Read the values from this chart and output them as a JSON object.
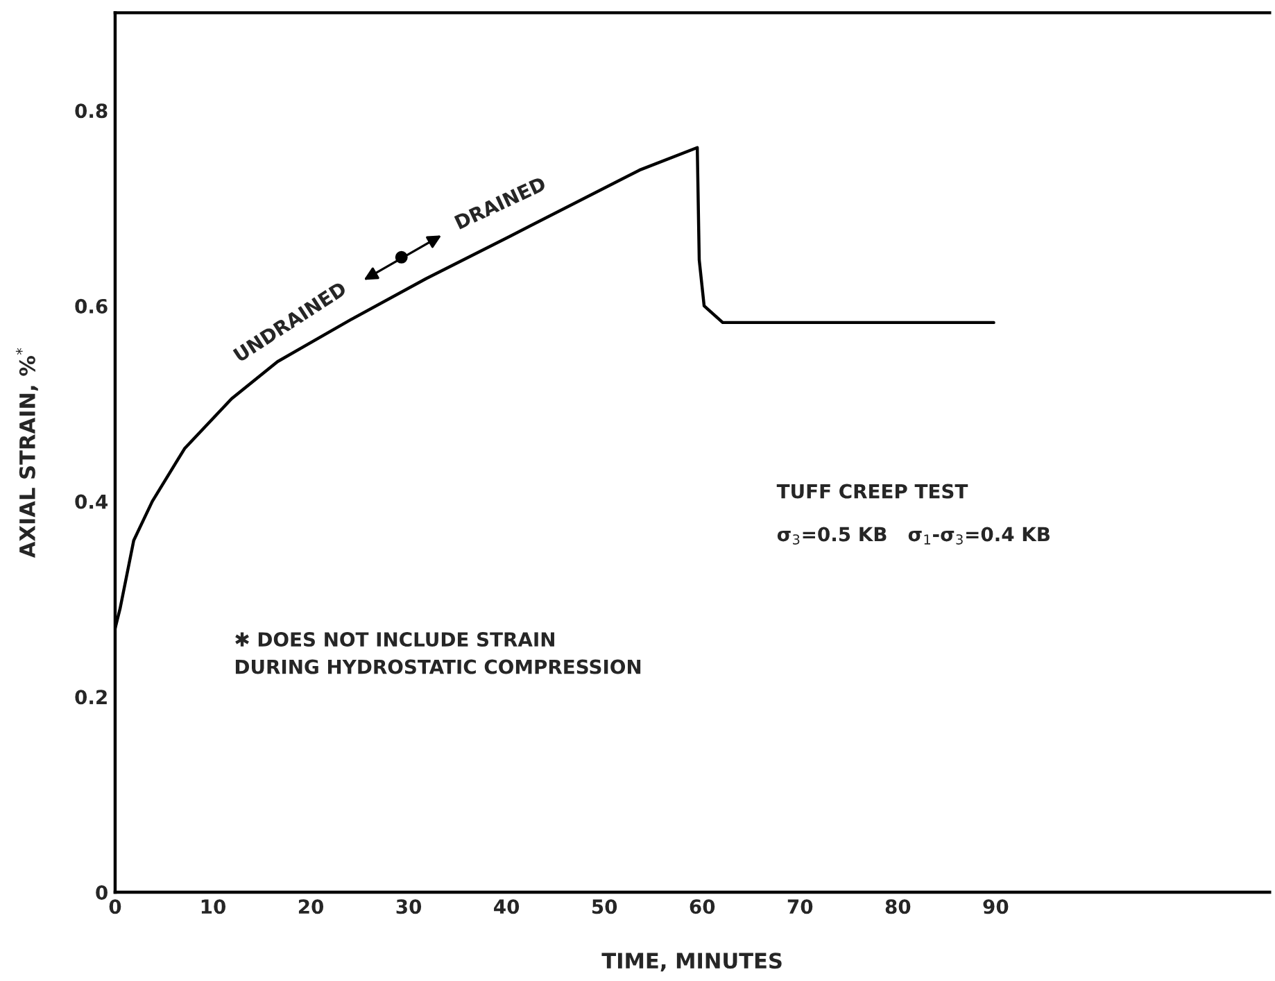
{
  "chart_data": {
    "type": "line",
    "xlabel": "TIME, MINUTES",
    "ylabel": "AXIAL STRAIN, %$^{*}$",
    "x": [
      0,
      0.5,
      1.9,
      3.8,
      7.1,
      11.9,
      16.6,
      24.1,
      31.8,
      40.3,
      53.6,
      59.5,
      59.7,
      60.2,
      62.1,
      89.8
    ],
    "series": [
      {
        "color": "#000000",
        "values": [
          0.27,
          0.29,
          0.36,
          0.4,
          0.454,
          0.505,
          0.543,
          0.586,
          0.628,
          0.671,
          0.739,
          0.762,
          0.647,
          0.6,
          0.583,
          0.583
        ]
      }
    ],
    "xlim": [
      0,
      118
    ],
    "ylim": [
      0,
      0.9
    ],
    "xticks": [
      0,
      10,
      20,
      30,
      40,
      50,
      60,
      70,
      80,
      90
    ],
    "yticks": [
      0,
      0.2,
      0.4,
      0.6,
      0.8
    ],
    "grid": false,
    "legend": false,
    "marker": "none",
    "line_style": "solid",
    "annotations": [
      "UNDRAINED",
      "DRAINED",
      "TUFF CREEP TEST",
      "σ$_{3}$=0.5 KB   σ$_{1}$-σ$_{3}$=0.4 KB",
      "✱ DOES NOT INCLUDE STRAIN\nDURING HYDROSTATIC COMPRESSION"
    ]
  }
}
